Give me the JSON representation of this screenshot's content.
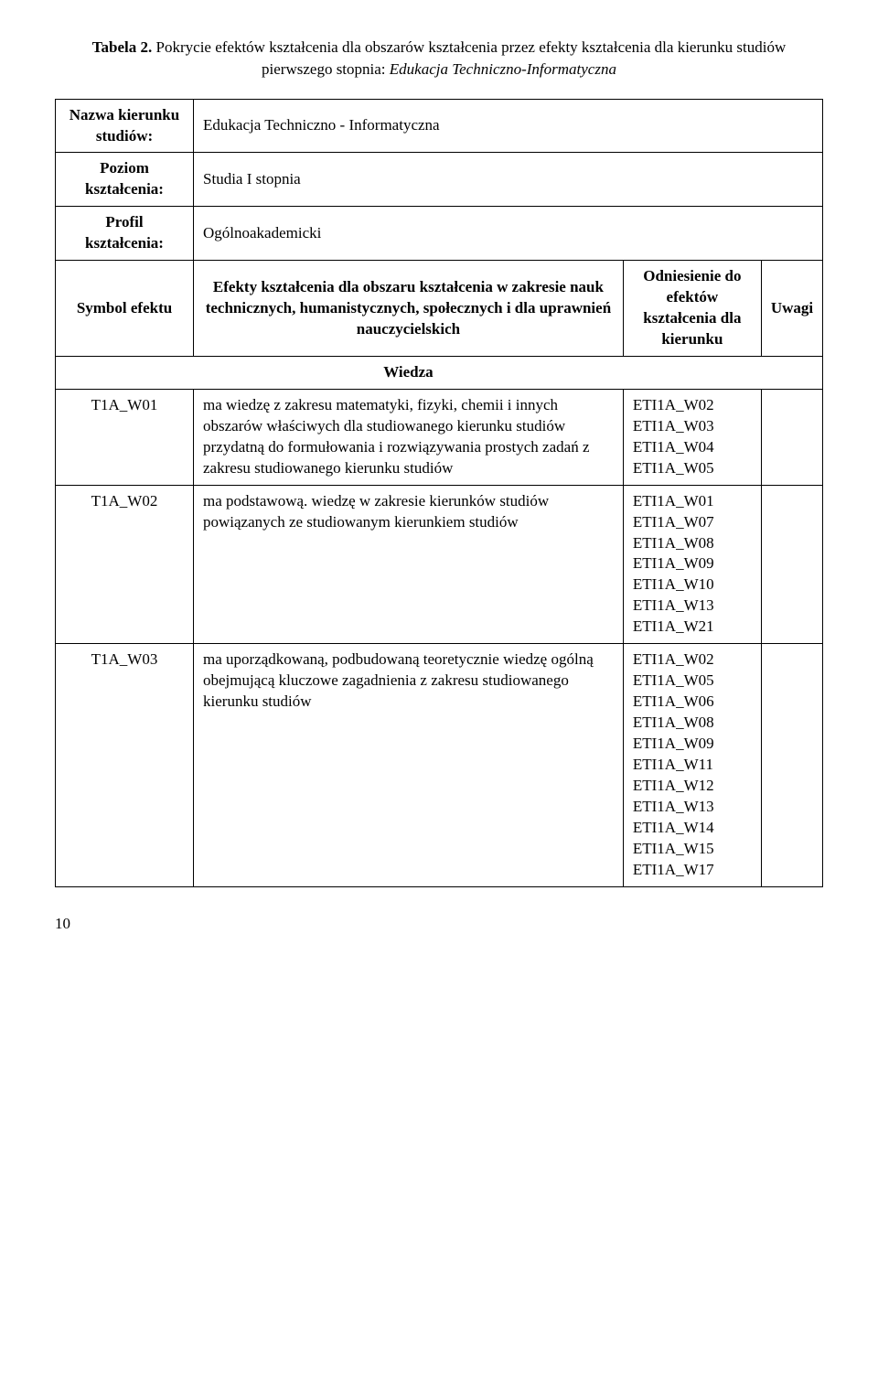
{
  "caption": {
    "label": "Tabela 2.",
    "text_part1": " Pokrycie efektów kształcenia dla obszarów kształcenia przez efekty kształcenia dla kierunku studiów pierwszego stopnia: ",
    "text_em": "Edukacja Techniczno-Informatyczna"
  },
  "header_rows": [
    {
      "left": "Nazwa kierunku studiów:",
      "right": "Edukacja Techniczno - Informatyczna"
    },
    {
      "left": "Poziom kształcenia:",
      "right": "Studia I stopnia"
    },
    {
      "left": "Profil kształcenia:",
      "right": "Ogólnoakademicki"
    }
  ],
  "column_heads": {
    "c1": "Symbol efektu",
    "c2": "Efekty kształcenia dla obszaru kształcenia w zakresie nauk technicznych, humanistycznych, społecznych i dla uprawnień nauczycielskich",
    "c3": "Odniesienie do efektów kształcenia dla kierunku",
    "c4": "Uwagi"
  },
  "section_title": "Wiedza",
  "rows": [
    {
      "sym": "T1A_W01",
      "desc": "ma wiedzę z zakresu matematyki, fizyki, chemii i innych obszarów właściwych dla studiowanego kierunku studiów przydatną do formułowania i rozwiązywania prostych zadań z zakresu studiowanego kierunku studiów",
      "refs": [
        "ETI1A_W02",
        "ETI1A_W03",
        "ETI1A_W04",
        "ETI1A_W05"
      ]
    },
    {
      "sym": "T1A_W02",
      "desc": "ma podstawową. wiedzę w zakresie kierunków studiów powiązanych ze studiowanym kierunkiem studiów",
      "refs": [
        "ETI1A_W01",
        "ETI1A_W07",
        "ETI1A_W08",
        "ETI1A_W09",
        "ETI1A_W10",
        "ETI1A_W13",
        "ETI1A_W21"
      ]
    },
    {
      "sym": "T1A_W03",
      "desc": "ma uporządkowaną, podbudowaną teoretycznie wiedzę ogólną obejmującą kluczowe zagadnienia z zakresu studiowanego kierunku studiów",
      "refs": [
        "ETI1A_W02",
        "ETI1A_W05",
        "ETI1A_W06",
        "ETI1A_W08",
        "ETI1A_W09",
        "ETI1A_W11",
        "ETI1A_W12",
        "ETI1A_W13",
        "ETI1A_W14",
        "ETI1A_W15",
        "ETI1A_W17"
      ]
    }
  ],
  "page_number": "10"
}
